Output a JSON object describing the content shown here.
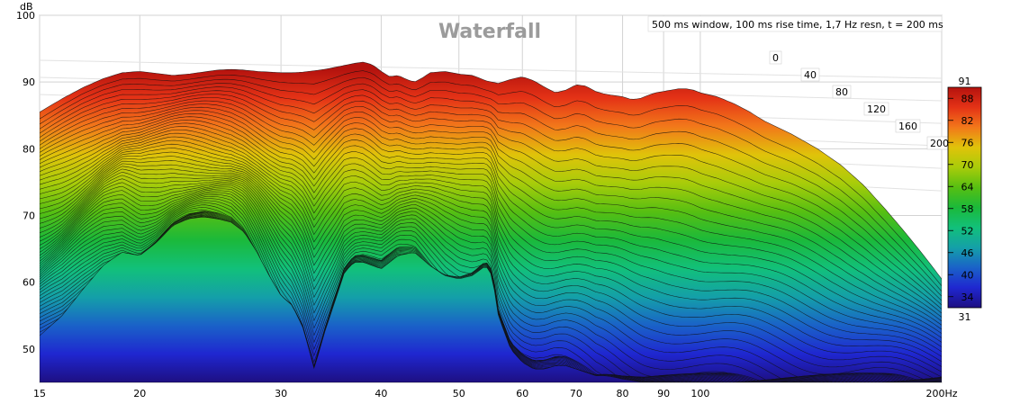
{
  "chart_data": {
    "type": "area",
    "title": "Waterfall",
    "annotation": "500 ms window, 100 ms rise time,  1,7 Hz resn, t = 200 ms",
    "ylabel": "dB",
    "xunit": "Hz",
    "x_scale": "log",
    "xlim": [
      15,
      200
    ],
    "ylim": [
      45,
      100
    ],
    "grid": true,
    "x_ticks": [
      15,
      20,
      30,
      40,
      50,
      60,
      70,
      80,
      90,
      100,
      200
    ],
    "x_tick_labels": [
      "15",
      "20",
      "30",
      "40",
      "50",
      "60",
      "70",
      "80",
      "90",
      "100",
      "200Hz"
    ],
    "y_ticks": [
      50,
      60,
      70,
      80,
      90,
      100
    ],
    "y_tick_labels": [
      "50",
      "60",
      "70",
      "80",
      "90",
      "100"
    ],
    "time_axis_ms": [
      0,
      40,
      80,
      120,
      160,
      200
    ],
    "time_axis_labels": [
      "0",
      "40",
      "80",
      "120",
      "160",
      "200"
    ],
    "color_scale": {
      "min": 31,
      "max": 91,
      "ticks": [
        34,
        40,
        46,
        52,
        58,
        64,
        70,
        76,
        82,
        88
      ],
      "tick_labels": [
        "34",
        "40",
        "46",
        "52",
        "58",
        "64",
        "70",
        "76",
        "82",
        "88"
      ],
      "min_label": "31",
      "max_label": "91",
      "colors": [
        "#1e0f82",
        "#1f27d0",
        "#1a62c8",
        "#14a0a8",
        "#12c07a",
        "#1bb93a",
        "#56bf12",
        "#a8cc0a",
        "#e0c30a",
        "#f2781a",
        "#e43216",
        "#b4120e"
      ]
    },
    "series": [
      {
        "time_ms": 0,
        "x": [
          15,
          16,
          17,
          18,
          19,
          20,
          21,
          22,
          23,
          24,
          25,
          26,
          27,
          28,
          29,
          30,
          31,
          32,
          33,
          34,
          35,
          36,
          37,
          38,
          39,
          40,
          41,
          42,
          43,
          44,
          45,
          46,
          47,
          48,
          49,
          50,
          52,
          54,
          56,
          58,
          60,
          62,
          64,
          66,
          68,
          70,
          72,
          74,
          76,
          78,
          80,
          82,
          84,
          86,
          88,
          90,
          92,
          94,
          96,
          98,
          100,
          105,
          110,
          115,
          120,
          130,
          140,
          150,
          160,
          170,
          180,
          190,
          200
        ],
        "y": [
          85.5,
          87.5,
          89.2,
          90.5,
          91.4,
          91.6,
          91.3,
          91.0,
          91.2,
          91.5,
          91.8,
          91.9,
          91.8,
          91.6,
          91.5,
          91.4,
          91.4,
          91.5,
          91.7,
          91.9,
          92.2,
          92.5,
          92.8,
          93.0,
          92.6,
          91.6,
          90.8,
          91.0,
          90.4,
          90.0,
          90.6,
          91.4,
          91.5,
          91.6,
          91.4,
          91.2,
          91.0,
          90.2,
          89.8,
          90.4,
          90.8,
          90.2,
          89.2,
          88.4,
          88.8,
          89.6,
          89.4,
          88.6,
          88.2,
          88.0,
          87.8,
          87.4,
          87.5,
          88.0,
          88.4,
          88.6,
          88.8,
          89.0,
          89.0,
          88.8,
          88.4,
          87.8,
          86.8,
          85.6,
          84.2,
          82.2,
          80.0,
          77.5,
          74.5,
          71.0,
          67.5,
          64.0,
          60.5
        ]
      },
      {
        "time_ms": 200,
        "x": [
          15,
          16,
          17,
          18,
          19,
          20,
          21,
          22,
          23,
          24,
          25,
          26,
          27,
          28,
          29,
          30,
          31,
          32,
          33,
          34,
          35,
          36,
          37,
          38,
          39,
          40,
          42,
          44,
          46,
          48,
          50,
          52,
          54,
          55,
          56,
          58,
          60,
          62,
          64,
          66,
          68,
          70,
          72,
          74,
          76,
          78,
          80,
          85,
          90,
          95,
          100,
          110,
          120,
          130,
          140,
          150,
          160,
          170,
          180,
          190,
          200
        ],
        "y": [
          52.0,
          55.0,
          59.0,
          62.5,
          64.5,
          64.0,
          66.0,
          68.5,
          69.5,
          69.8,
          69.5,
          69.0,
          67.5,
          64.5,
          61.0,
          58.0,
          56.5,
          53.0,
          47.0,
          52.5,
          57.0,
          61.5,
          63.0,
          63.0,
          62.5,
          62.0,
          64.0,
          64.5,
          62.5,
          61.0,
          60.5,
          61.0,
          62.5,
          61.0,
          55.0,
          50.0,
          48.0,
          47.0,
          47.0,
          47.5,
          47.5,
          47.0,
          46.5,
          46.0,
          46.0,
          45.8,
          45.5,
          45.0,
          45.0,
          45.0,
          45.0,
          45.0,
          45.0,
          45.0,
          45.0,
          45.0,
          45.0,
          45.0,
          45.0,
          45.0,
          45.0
        ]
      }
    ]
  }
}
